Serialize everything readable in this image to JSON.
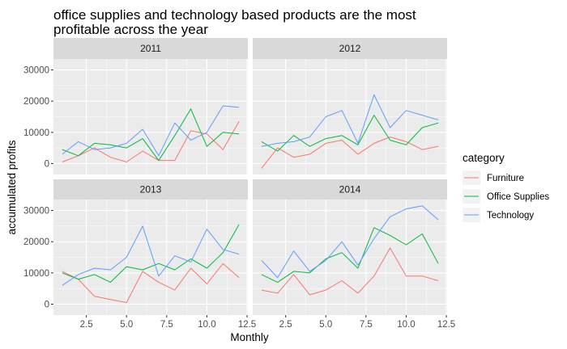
{
  "chart_data": {
    "type": "line",
    "title": "office supplies and technology based products are the most profitable across the year",
    "title_lines": [
      "office supplies and technology based products are the most",
      "profitable across the year"
    ],
    "xlabel": "Monthly",
    "ylabel": "accumulated profits",
    "xlim": [
      0.45,
      12.55
    ],
    "ylim": [
      -3500,
      33500
    ],
    "x_ticks": [
      2.5,
      5.0,
      7.5,
      10.0,
      12.5
    ],
    "x_tick_labels": [
      "2.5",
      "5.0",
      "7.5",
      "10.0",
      "12.5"
    ],
    "y_ticks": [
      0,
      10000,
      20000,
      30000
    ],
    "y_tick_labels": [
      "0",
      "10000",
      "20000",
      "30000"
    ],
    "grid": true,
    "legend": {
      "title": "category",
      "position": "right",
      "entries": [
        "Furniture",
        "Office Supplies",
        "Technology"
      ]
    },
    "series_colors": {
      "Furniture": "#F8766D",
      "Office Supplies": "#00BA38",
      "Technology": "#619CFF"
    },
    "x": [
      1,
      2,
      3,
      4,
      5,
      6,
      7,
      8,
      9,
      10,
      11,
      12
    ],
    "panels": [
      {
        "label": "2011",
        "series": [
          {
            "name": "Furniture",
            "values": [
              500,
              2500,
              5000,
              2000,
              500,
              4000,
              1000,
              1000,
              10500,
              9500,
              4500,
              13500
            ]
          },
          {
            "name": "Office Supplies",
            "values": [
              4500,
              2500,
              6500,
              6000,
              5000,
              8000,
              1000,
              9000,
              17500,
              5500,
              10000,
              9500
            ]
          },
          {
            "name": "Technology",
            "values": [
              3000,
              7000,
              4500,
              5000,
              6500,
              11000,
              2500,
              13000,
              7500,
              10000,
              18500,
              18000
            ]
          }
        ]
      },
      {
        "label": "2012",
        "series": [
          {
            "name": "Furniture",
            "values": [
              -1500,
              5000,
              2000,
              3000,
              6500,
              7500,
              3000,
              6500,
              8500,
              7000,
              4500,
              5500
            ]
          },
          {
            "name": "Office Supplies",
            "values": [
              7000,
              4000,
              9000,
              5500,
              8000,
              9000,
              6000,
              15500,
              7500,
              6000,
              11500,
              13000
            ]
          },
          {
            "name": "Technology",
            "values": [
              5500,
              6500,
              7000,
              8500,
              15000,
              17000,
              6500,
              22000,
              11500,
              17000,
              15500,
              14000
            ]
          }
        ]
      },
      {
        "label": "2013",
        "series": [
          {
            "name": "Furniture",
            "values": [
              10500,
              8000,
              2500,
              1500,
              500,
              10500,
              7000,
              4500,
              11500,
              6500,
              13000,
              8500
            ]
          },
          {
            "name": "Office Supplies",
            "values": [
              10000,
              8000,
              9500,
              7000,
              12000,
              11000,
              13000,
              11000,
              14500,
              11500,
              16500,
              25500
            ]
          },
          {
            "name": "Technology",
            "values": [
              6000,
              9500,
              11500,
              11000,
              15000,
              25000,
              9000,
              15500,
              13500,
              24000,
              17500,
              16000
            ]
          }
        ]
      },
      {
        "label": "2014",
        "series": [
          {
            "name": "Furniture",
            "values": [
              4500,
              3500,
              9500,
              3000,
              4500,
              7500,
              3500,
              9000,
              18000,
              9000,
              9000,
              7500
            ]
          },
          {
            "name": "Office Supplies",
            "values": [
              9500,
              7000,
              10500,
              10000,
              14500,
              16500,
              11500,
              24500,
              22000,
              19000,
              22500,
              13000
            ]
          },
          {
            "name": "Technology",
            "values": [
              14000,
              8500,
              17000,
              10500,
              14000,
              20000,
              12500,
              21000,
              28000,
              30500,
              31500,
              27000
            ]
          }
        ]
      }
    ]
  }
}
